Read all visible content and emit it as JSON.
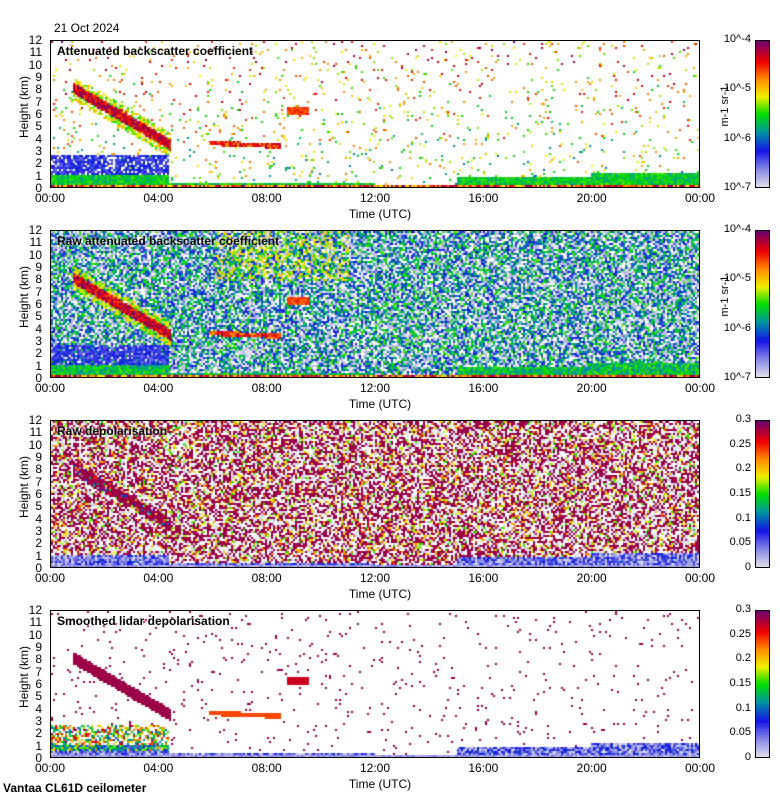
{
  "date": "21 Oct 2024",
  "footer": "Vantaa CL61D ceilometer",
  "chart_data": [
    {
      "type": "heatmap",
      "title": "Attenuated backscatter coefficient",
      "xlabel": "Time (UTC)",
      "ylabel": "Height (km)",
      "xticks": [
        "00:00",
        "04:00",
        "08:00",
        "12:00",
        "16:00",
        "20:00",
        "00:00"
      ],
      "yticks": [
        "0",
        "1",
        "2",
        "3",
        "4",
        "5",
        "6",
        "7",
        "8",
        "9",
        "10",
        "11",
        "12"
      ],
      "ylim": [
        0,
        12
      ],
      "xlim_hours": [
        0,
        24
      ],
      "scale": "log",
      "clim": [
        1e-07,
        0.0001
      ],
      "cticks": [
        "10^-7",
        "10^-6",
        "10^-5",
        "10^-4"
      ],
      "cunit": "m-1 sr-1"
    },
    {
      "type": "heatmap",
      "title": "Raw attenuated backscatter coefficient",
      "xlabel": "Time (UTC)",
      "ylabel": "Height (km)",
      "xticks": [
        "00:00",
        "04:00",
        "08:00",
        "12:00",
        "16:00",
        "20:00",
        "00:00"
      ],
      "yticks": [
        "0",
        "1",
        "2",
        "3",
        "4",
        "5",
        "6",
        "7",
        "8",
        "9",
        "10",
        "11",
        "12"
      ],
      "ylim": [
        0,
        12
      ],
      "xlim_hours": [
        0,
        24
      ],
      "scale": "log",
      "clim": [
        1e-07,
        0.0001
      ],
      "cticks": [
        "10^-7",
        "10^-6",
        "10^-5",
        "10^-4"
      ],
      "cunit": "m-1 sr-1"
    },
    {
      "type": "heatmap",
      "title": "Raw depolarisation",
      "xlabel": "Time (UTC)",
      "ylabel": "Height (km)",
      "xticks": [
        "00:00",
        "04:00",
        "08:00",
        "12:00",
        "16:00",
        "20:00",
        "00:00"
      ],
      "yticks": [
        "0",
        "1",
        "2",
        "3",
        "4",
        "5",
        "6",
        "7",
        "8",
        "9",
        "10",
        "11",
        "12"
      ],
      "ylim": [
        0,
        12
      ],
      "xlim_hours": [
        0,
        24
      ],
      "scale": "linear",
      "clim": [
        0,
        0.3
      ],
      "cticks": [
        "0",
        "0.05",
        "0.1",
        "0.15",
        "0.2",
        "0.25",
        "0.3"
      ],
      "cunit": ""
    },
    {
      "type": "heatmap",
      "title": "Smoothed lidar depolarisation",
      "xlabel": "Time (UTC)",
      "ylabel": "Height (km)",
      "xticks": [
        "00:00",
        "04:00",
        "08:00",
        "12:00",
        "16:00",
        "20:00",
        "00:00"
      ],
      "yticks": [
        "0",
        "1",
        "2",
        "3",
        "4",
        "5",
        "6",
        "7",
        "8",
        "9",
        "10",
        "11",
        "12"
      ],
      "ylim": [
        0,
        12
      ],
      "xlim_hours": [
        0,
        24
      ],
      "scale": "linear",
      "clim": [
        0,
        0.3
      ],
      "cticks": [
        "0",
        "0.05",
        "0.1",
        "0.15",
        "0.2",
        "0.25",
        "0.3"
      ],
      "cunit": ""
    }
  ]
}
